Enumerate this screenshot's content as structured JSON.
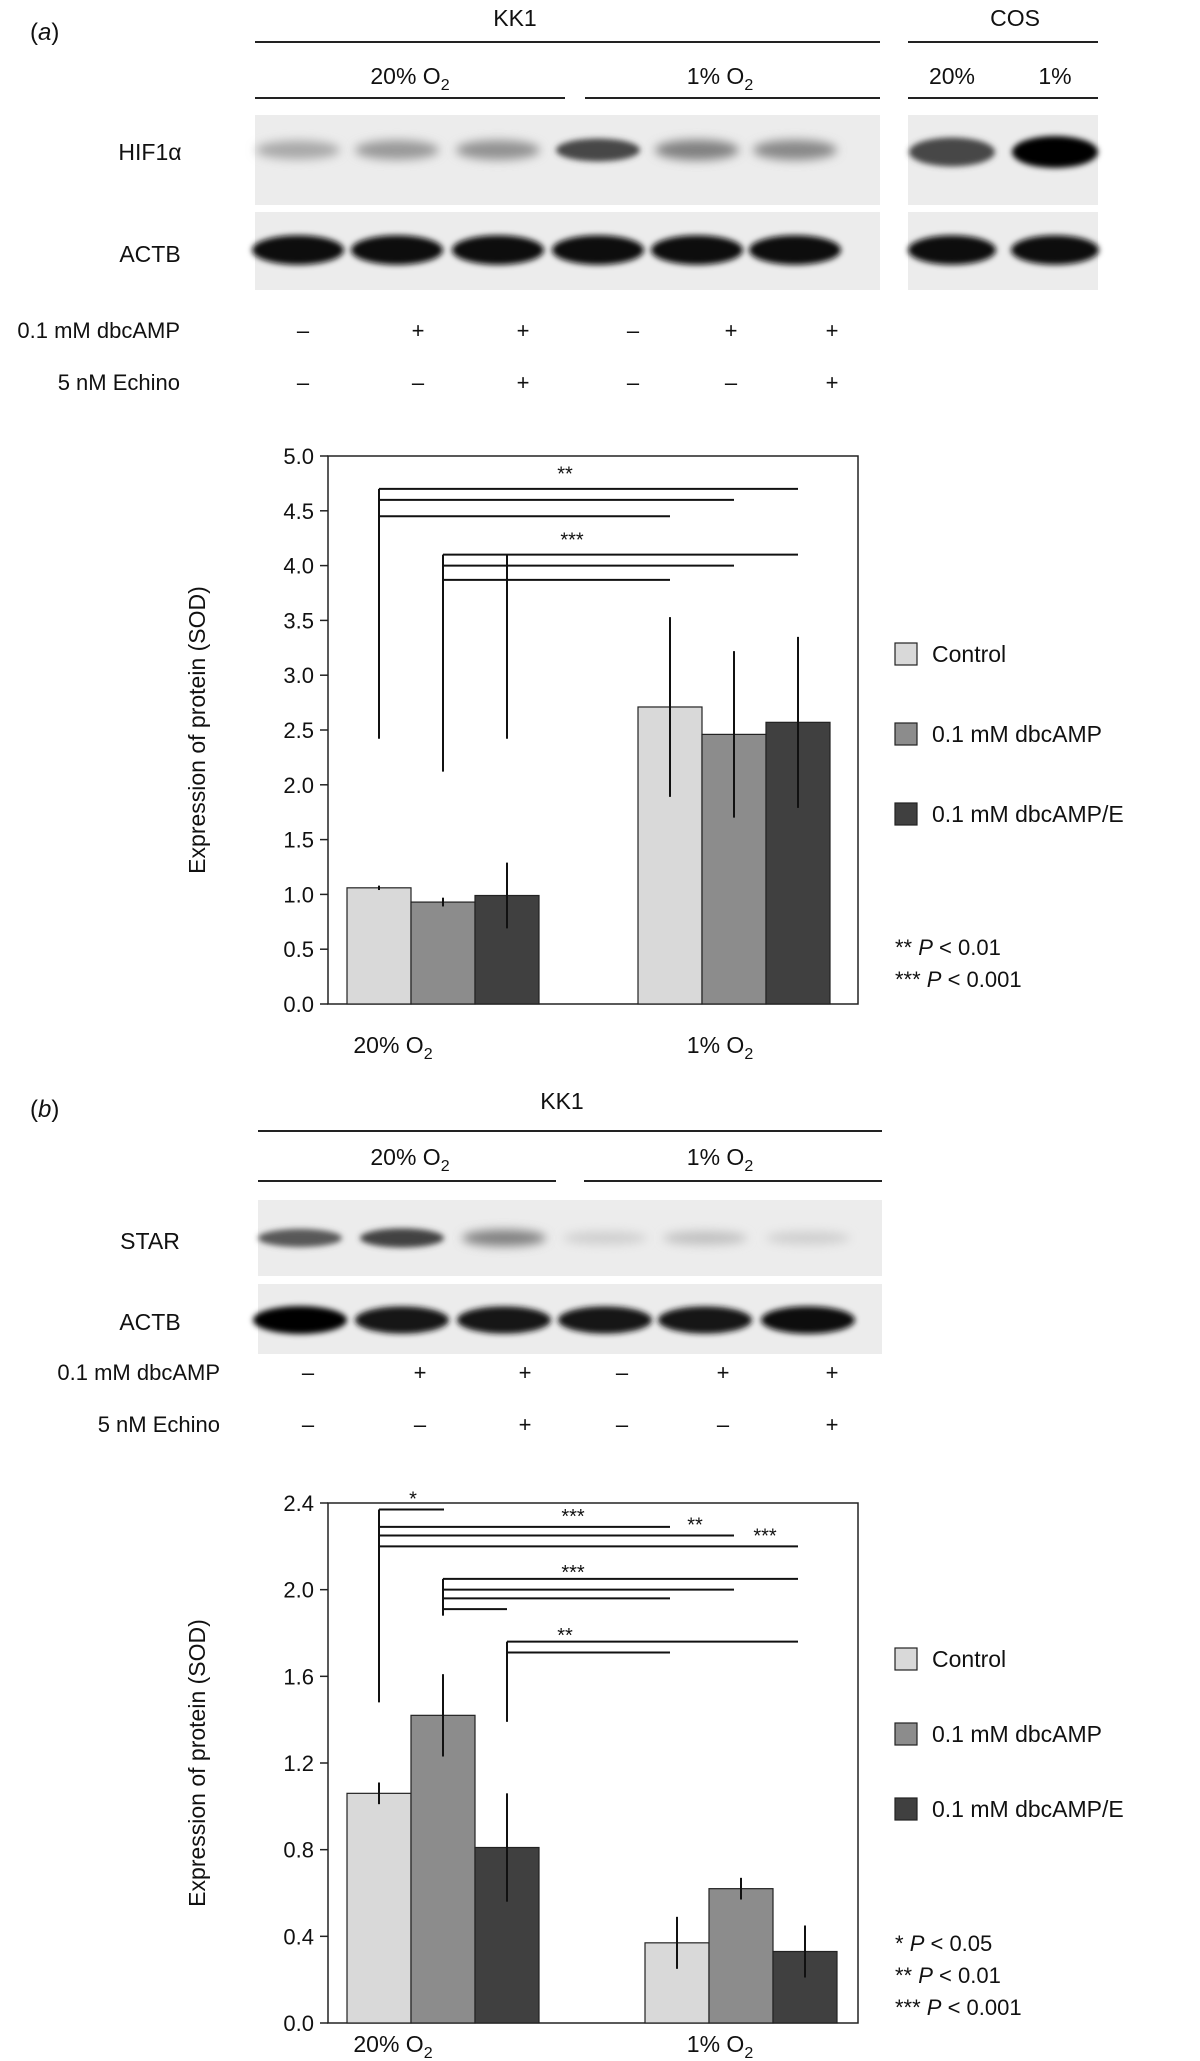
{
  "panel_a": {
    "label": "(a)",
    "label_letter": "a",
    "blot": {
      "group_kk1": "KK1",
      "group_cos": "COS",
      "cond_20": "20% O",
      "cond_1": "1% O",
      "o2_sub": "2",
      "cos_20": "20%",
      "cos_1": "1%",
      "row_hif": "HIF1α",
      "row_actb": "ACTB",
      "treat_dbc": "0.1 mM dbcAMP",
      "treat_echino": "5 nM Echino",
      "dbc_signs": [
        "–",
        "+",
        "+",
        "–",
        "+",
        "+"
      ],
      "echino_signs": [
        "–",
        "–",
        "+",
        "–",
        "–",
        "+"
      ],
      "hif_intensity": [
        0.28,
        0.35,
        0.38,
        0.7,
        0.45,
        0.42
      ],
      "hif_cos_intensity": [
        0.7,
        1.0
      ],
      "actb_intensity": [
        0.95,
        0.95,
        0.95,
        0.95,
        0.95,
        0.95
      ],
      "actb_cos_intensity": [
        0.95,
        0.95
      ]
    },
    "chart_data": {
      "type": "bar",
      "categories": [
        "20% O2",
        "1% O2"
      ],
      "category_main": "% O",
      "category_prefixes": [
        "20",
        "1"
      ],
      "category_sub": "2",
      "ylabel": "Expression of protein (SOD)",
      "ylim": [
        0,
        5
      ],
      "yticks": [
        "0.0",
        "0.5",
        "1.0",
        "1.5",
        "2.0",
        "2.5",
        "3.0",
        "3.5",
        "4.0",
        "4.5",
        "5.0"
      ],
      "series": [
        {
          "name": "Control",
          "values": [
            1.06,
            2.71
          ],
          "errors": [
            0.02,
            0.82
          ],
          "color": "#d9d9d9"
        },
        {
          "name": "0.1 mM dbcAMP",
          "values": [
            0.93,
            2.46
          ],
          "errors": [
            0.04,
            0.76
          ],
          "color": "#8c8c8c"
        },
        {
          "name": "0.1 mM dbcAMP/E",
          "values": [
            0.99,
            2.57
          ],
          "errors": [
            0.3,
            0.78
          ],
          "color": "#404040"
        }
      ],
      "significance": [
        {
          "label": "**",
          "from": "Control 20% O2"
        },
        {
          "label": "***",
          "from": "0.1 mM dbcAMP 20% O2"
        }
      ],
      "legend_position": "right",
      "pvalue_notes": [
        {
          "stars": "**",
          "p": "P",
          "rest": " < 0.01"
        },
        {
          "stars": "***",
          "p": "P",
          "rest": " < 0.001"
        }
      ]
    }
  },
  "panel_b": {
    "label": "(b)",
    "label_letter": "b",
    "blot": {
      "group_kk1": "KK1",
      "cond_20": "20% O",
      "cond_1": "1% O",
      "o2_sub": "2",
      "row_star": "STAR",
      "row_actb": "ACTB",
      "treat_dbc": "0.1 mM dbcAMP",
      "treat_echino": "5 nM Echino",
      "dbc_signs": [
        "–",
        "+",
        "+",
        "–",
        "+",
        "+"
      ],
      "echino_signs": [
        "–",
        "–",
        "+",
        "–",
        "–",
        "+"
      ],
      "star_intensity": [
        0.62,
        0.72,
        0.45,
        0.12,
        0.18,
        0.12
      ],
      "actb_intensity": [
        1.0,
        0.92,
        0.92,
        0.92,
        0.92,
        0.95
      ]
    },
    "chart_data": {
      "type": "bar",
      "categories": [
        "20% O2",
        "1% O2"
      ],
      "category_main": "% O",
      "category_prefixes": [
        "20",
        "1"
      ],
      "category_sub": "2",
      "ylabel": "Expression of protein (SOD)",
      "ylim": [
        0,
        2.4
      ],
      "yticks": [
        "0.0",
        "0.4",
        "0.8",
        "1.2",
        "1.6",
        "2.0",
        "2.4"
      ],
      "series": [
        {
          "name": "Control",
          "values": [
            1.06,
            0.37
          ],
          "errors": [
            0.05,
            0.12
          ],
          "color": "#d9d9d9"
        },
        {
          "name": "0.1 mM dbcAMP",
          "values": [
            1.42,
            0.62
          ],
          "errors": [
            0.19,
            0.05
          ],
          "color": "#8c8c8c"
        },
        {
          "name": "0.1 mM dbcAMP/E",
          "values": [
            0.81,
            0.33
          ],
          "errors": [
            0.25,
            0.12
          ],
          "color": "#404040"
        }
      ],
      "significance": [
        {
          "label": "*",
          "from": "Control 20% O2"
        },
        {
          "label": "***",
          "from": "Control 20% O2"
        },
        {
          "label": "**",
          "from": "Control 20% O2"
        },
        {
          "label": "***",
          "from": "Control 20% O2"
        },
        {
          "label": "***",
          "from": "0.1 mM dbcAMP 20% O2"
        },
        {
          "label": "**",
          "from": "0.1 mM dbcAMP/E 20% O2"
        }
      ],
      "legend_position": "right",
      "pvalue_notes": [
        {
          "stars": "*",
          "p": "P",
          "rest": " < 0.05"
        },
        {
          "stars": "**",
          "p": "P",
          "rest": " < 0.01"
        },
        {
          "stars": "***",
          "p": "P",
          "rest": " < 0.001"
        }
      ]
    }
  }
}
